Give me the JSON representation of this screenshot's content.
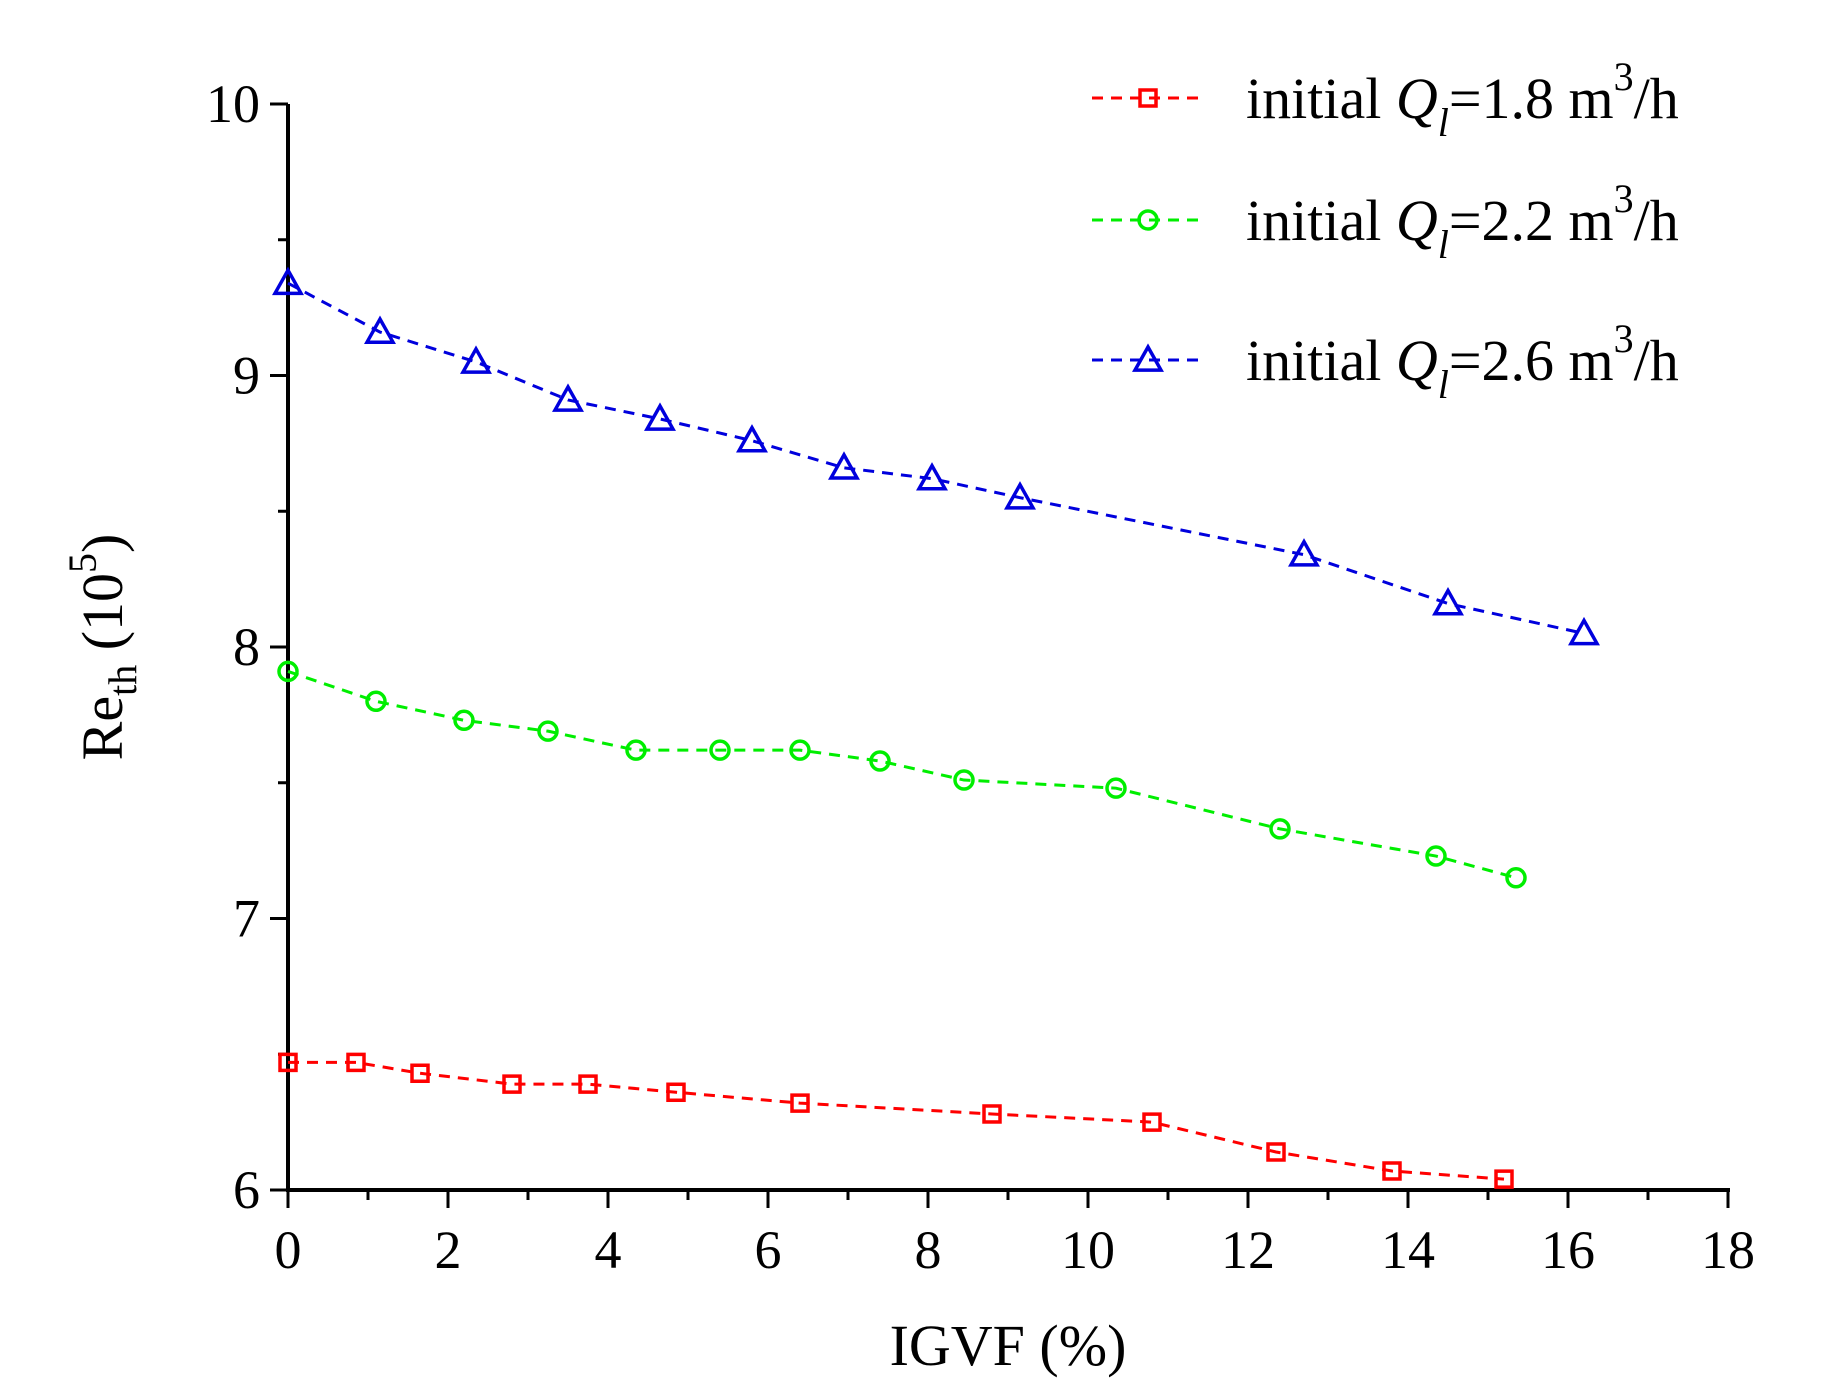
{
  "chart_data": {
    "type": "line",
    "xlabel": "IGVF (%)",
    "ylabel": {
      "base": "Re",
      "subscript": "th",
      "unit_open": " (10",
      "unit_sup": "5",
      "unit_close": ")"
    },
    "xlim": [
      0,
      18
    ],
    "ylim": [
      6,
      10
    ],
    "x_ticks": [
      0,
      2,
      4,
      6,
      8,
      10,
      12,
      14,
      16,
      18
    ],
    "y_ticks": [
      6,
      7,
      8,
      9,
      10
    ],
    "legend_position": "top-right",
    "series": [
      {
        "name": "initial Ql=1.8 m3/h",
        "legend_prefix": "initial ",
        "legend_q": "Q",
        "legend_q_sub": "l",
        "legend_value": "=1.8 m",
        "legend_sup": "3",
        "legend_unit": "/h",
        "color": "#ff0000",
        "marker": "square",
        "x": [
          0,
          0.85,
          1.65,
          2.8,
          3.75,
          4.85,
          6.4,
          8.8,
          10.8,
          12.35,
          13.8,
          15.2
        ],
        "y": [
          6.47,
          6.47,
          6.43,
          6.39,
          6.39,
          6.36,
          6.32,
          6.28,
          6.25,
          6.14,
          6.07,
          6.04
        ]
      },
      {
        "name": "initial Ql=2.2 m3/h",
        "legend_prefix": "initial ",
        "legend_q": "Q",
        "legend_q_sub": "l",
        "legend_value": "=2.2 m",
        "legend_sup": "3",
        "legend_unit": "/h",
        "color": "#00ee00",
        "marker": "circle",
        "x": [
          0,
          1.1,
          2.2,
          3.25,
          4.35,
          5.4,
          6.4,
          7.4,
          8.45,
          10.35,
          12.4,
          14.35,
          15.35
        ],
        "y": [
          7.91,
          7.8,
          7.73,
          7.69,
          7.62,
          7.62,
          7.62,
          7.58,
          7.51,
          7.48,
          7.33,
          7.23,
          7.15
        ]
      },
      {
        "name": "initial Ql=2.6 m3/h",
        "legend_prefix": "initial ",
        "legend_q": "Q",
        "legend_q_sub": "l",
        "legend_value": "=2.6 m",
        "legend_sup": "3",
        "legend_unit": "/h",
        "color": "#0000dd",
        "marker": "triangle",
        "x": [
          0,
          1.15,
          2.35,
          3.5,
          4.65,
          5.8,
          6.95,
          8.05,
          9.15,
          12.7,
          14.5,
          16.2
        ],
        "y": [
          9.34,
          9.16,
          9.05,
          8.91,
          8.84,
          8.76,
          8.66,
          8.62,
          8.55,
          8.34,
          8.16,
          8.05
        ]
      }
    ]
  }
}
